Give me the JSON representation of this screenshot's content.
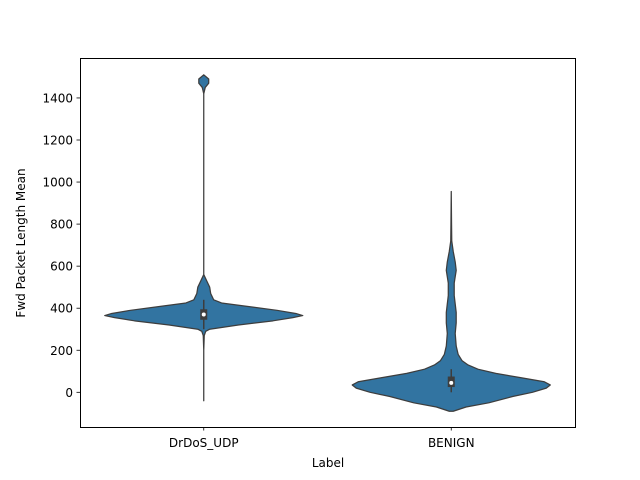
{
  "chart_data": {
    "type": "violin",
    "xlabel": "Label",
    "ylabel": "Fwd Packet Length Mean",
    "categories": [
      "DrDoS_UDP",
      "BENIGN"
    ],
    "yticks": [
      0,
      200,
      400,
      600,
      800,
      1000,
      1200,
      1400
    ],
    "ylim": [
      -165,
      1590
    ],
    "grid": false,
    "color": "#3274a1",
    "edge_color": "#3d3d3d",
    "violins": [
      {
        "category": "DrDoS_UDP",
        "min": -40,
        "max": 1510,
        "q1": 345,
        "median": 370,
        "q3": 395,
        "whisker_low": 300,
        "whisker_high": 440,
        "profile": [
          [
            -40,
            0.0
          ],
          [
            200,
            0.0
          ],
          [
            270,
            0.005
          ],
          [
            290,
            0.02
          ],
          [
            300,
            0.06
          ],
          [
            320,
            0.35
          ],
          [
            340,
            0.7
          ],
          [
            355,
            0.9
          ],
          [
            365,
            1.0
          ],
          [
            375,
            0.93
          ],
          [
            390,
            0.74
          ],
          [
            410,
            0.42
          ],
          [
            425,
            0.18
          ],
          [
            440,
            0.1
          ],
          [
            470,
            0.07
          ],
          [
            500,
            0.06
          ],
          [
            530,
            0.03
          ],
          [
            560,
            0.0
          ],
          [
            1420,
            0.0
          ],
          [
            1450,
            0.015
          ],
          [
            1470,
            0.05
          ],
          [
            1490,
            0.05
          ],
          [
            1510,
            0.0
          ]
        ]
      },
      {
        "category": "BENIGN",
        "min": -90,
        "max": 955,
        "q1": 25,
        "median": 45,
        "q3": 75,
        "whisker_low": 0,
        "whisker_high": 110,
        "profile": [
          [
            -90,
            0.02
          ],
          [
            -70,
            0.15
          ],
          [
            -50,
            0.38
          ],
          [
            -20,
            0.62
          ],
          [
            0,
            0.82
          ],
          [
            20,
            0.96
          ],
          [
            35,
            1.0
          ],
          [
            50,
            0.94
          ],
          [
            70,
            0.7
          ],
          [
            90,
            0.45
          ],
          [
            110,
            0.27
          ],
          [
            130,
            0.17
          ],
          [
            150,
            0.11
          ],
          [
            180,
            0.07
          ],
          [
            220,
            0.05
          ],
          [
            280,
            0.04
          ],
          [
            330,
            0.05
          ],
          [
            380,
            0.05
          ],
          [
            420,
            0.04
          ],
          [
            460,
            0.03
          ],
          [
            520,
            0.03
          ],
          [
            580,
            0.05
          ],
          [
            620,
            0.04
          ],
          [
            670,
            0.02
          ],
          [
            720,
            0.005
          ],
          [
            800,
            0.003
          ],
          [
            955,
            0.0
          ]
        ]
      }
    ]
  }
}
